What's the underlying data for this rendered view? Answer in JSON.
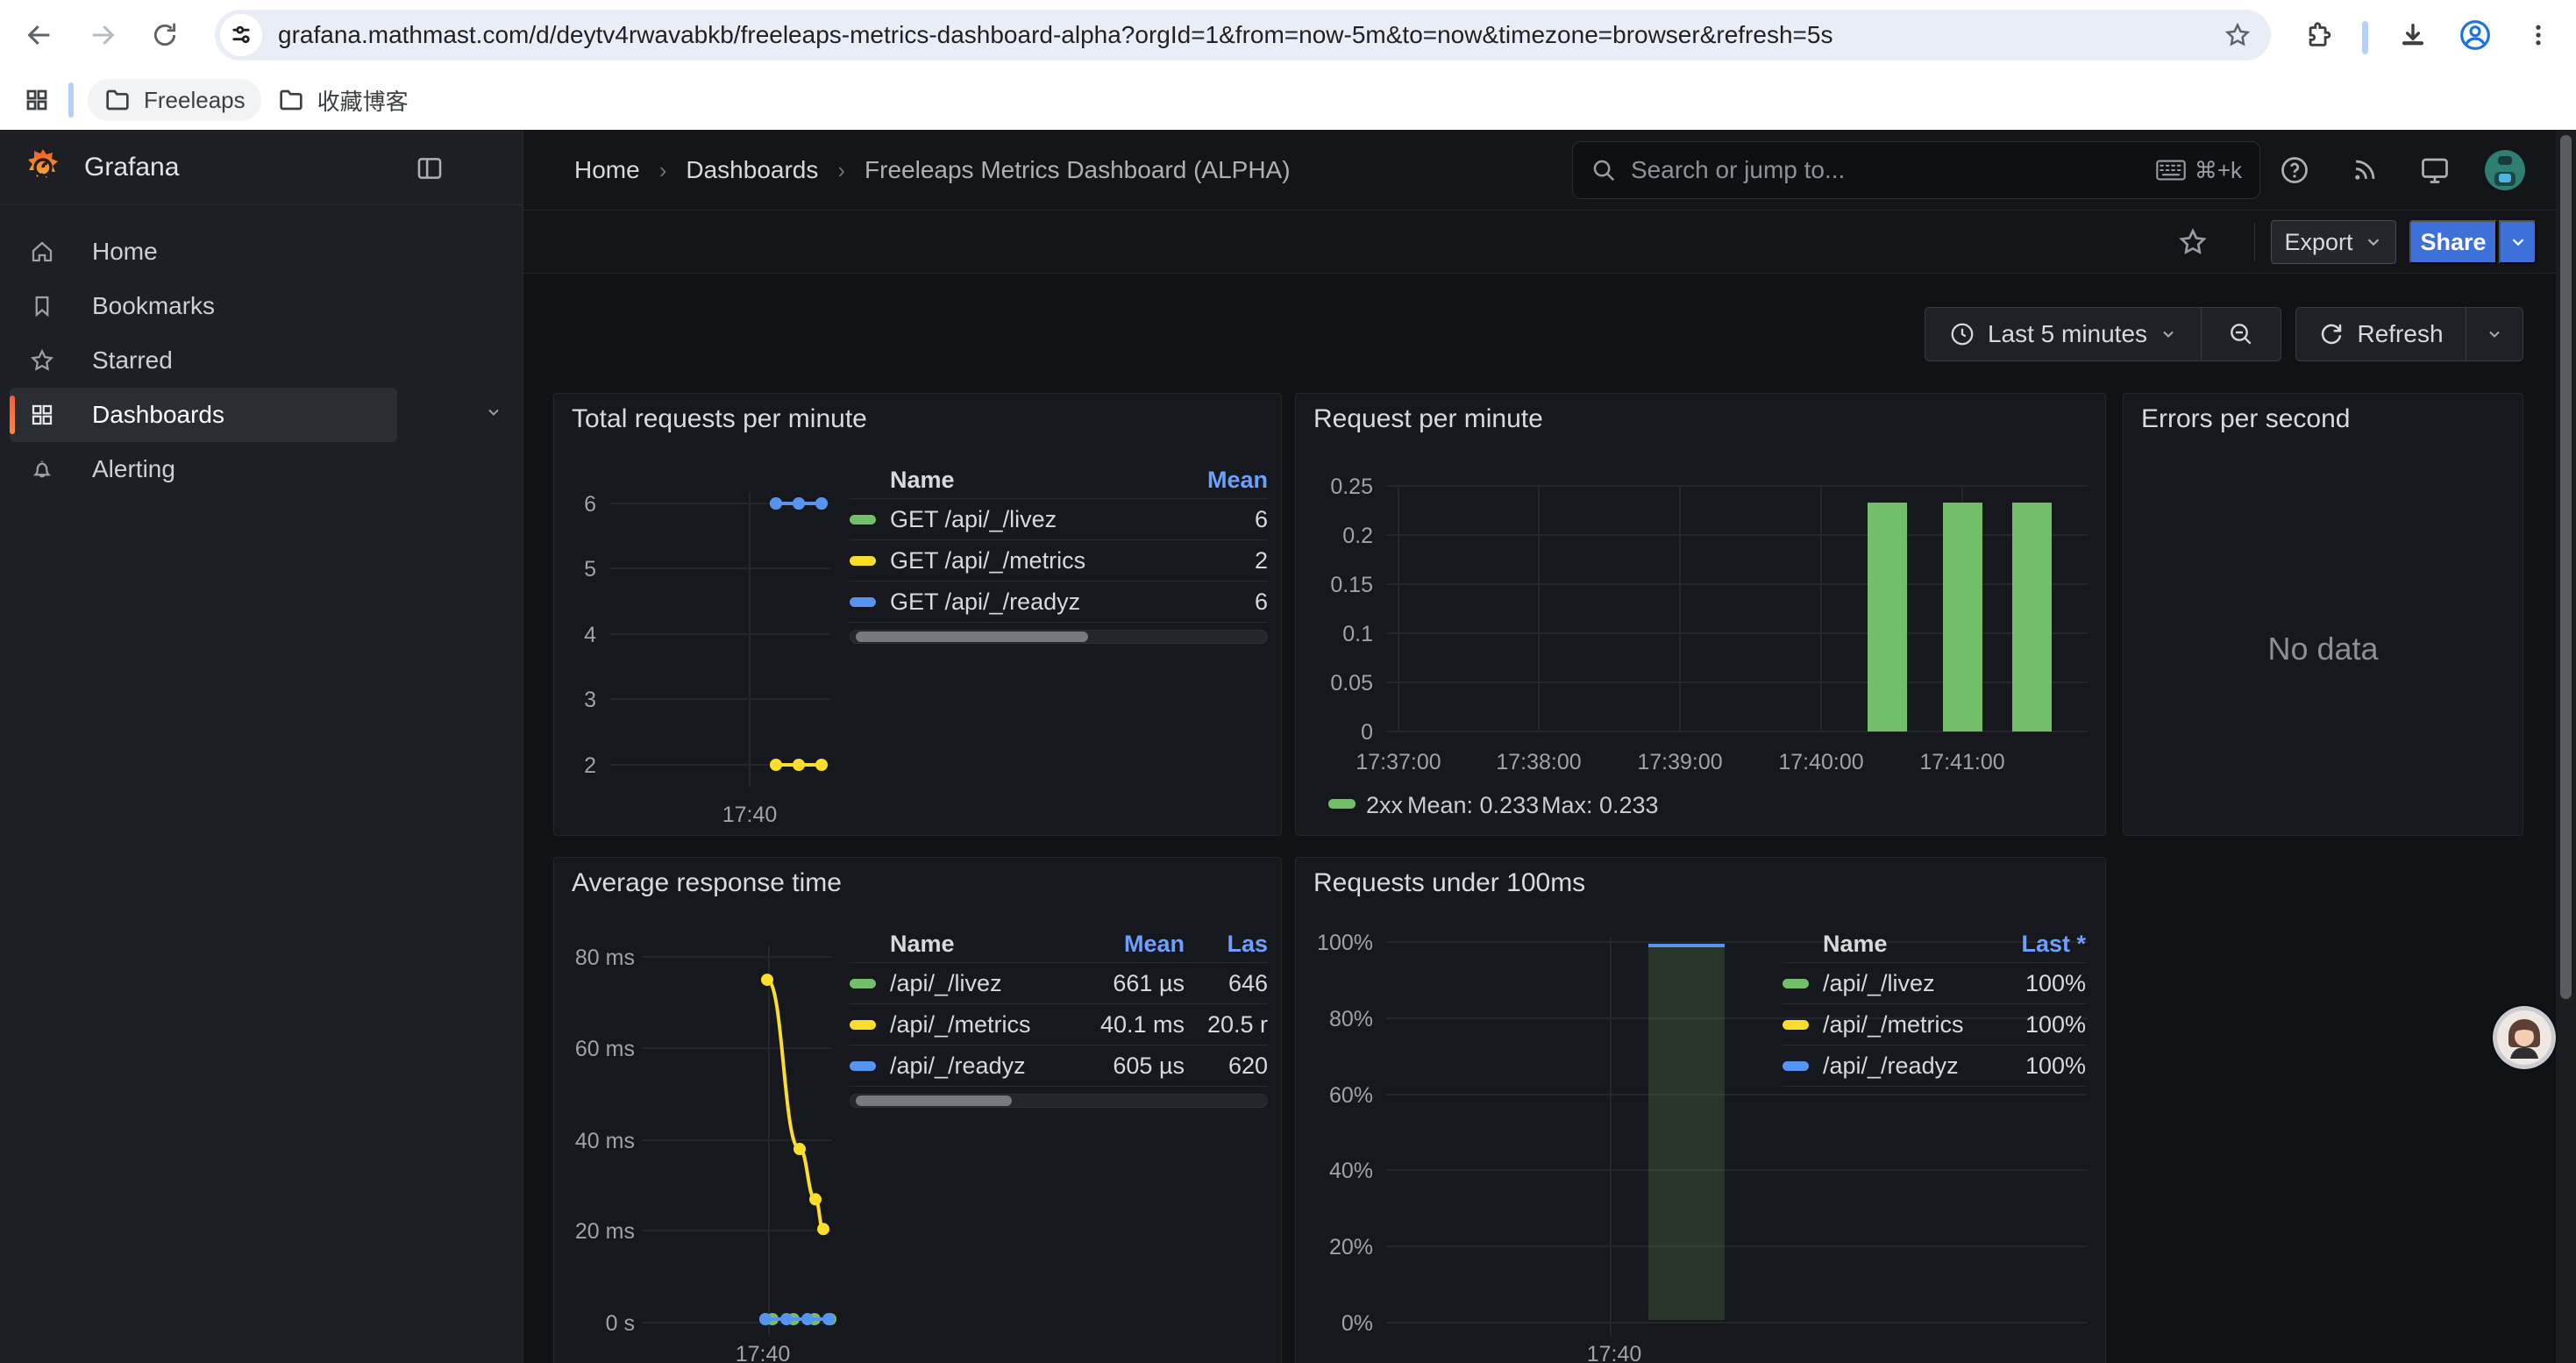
{
  "browser": {
    "url": "grafana.mathmast.com/d/deytv4rwavabkb/freeleaps-metrics-dashboard-alpha?orgId=1&from=now-5m&to=now&timezone=browser&refresh=5s",
    "bookmarks": [
      {
        "label": "Freeleaps"
      },
      {
        "label": "收藏博客"
      }
    ],
    "icons": [
      "back",
      "forward",
      "reload",
      "tune",
      "bookmark-star",
      "extensions",
      "download",
      "profile",
      "menu"
    ]
  },
  "sidebar": {
    "brand": "Grafana",
    "items": [
      {
        "label": "Home",
        "icon": "home-icon",
        "expandable": false,
        "active": false
      },
      {
        "label": "Bookmarks",
        "icon": "bookmark-icon",
        "expandable": true,
        "active": false
      },
      {
        "label": "Starred",
        "icon": "star-icon",
        "expandable": true,
        "active": false
      },
      {
        "label": "Dashboards",
        "icon": "apps-grid-icon",
        "expandable": true,
        "active": true
      },
      {
        "label": "Alerting",
        "icon": "bell-icon",
        "expandable": true,
        "active": false
      }
    ]
  },
  "topnav": {
    "breadcrumbs": [
      "Home",
      "Dashboards",
      "Freeleaps Metrics Dashboard (ALPHA)"
    ],
    "search_placeholder": "Search or jump to...",
    "search_shortcut": "⌘+k",
    "icons": [
      "help",
      "rss",
      "monitor",
      "user-avatar"
    ]
  },
  "toolbar": {
    "export_label": "Export",
    "share_label": "Share"
  },
  "controls": {
    "time_range": "Last 5 minutes",
    "refresh_label": "Refresh"
  },
  "colors": {
    "green": "#73BF69",
    "yellow": "#FADE2A",
    "blue": "#5794F2",
    "link_blue": "#6E9FFF",
    "share_blue": "#3D71D9",
    "accent_orange": "#FF8833",
    "bar_fill_translucent": "rgba(115,191,105,0.18)"
  },
  "chart_data": [
    {
      "id": "total-requests",
      "type": "line",
      "title": "Total requests per minute",
      "ylim": [
        2,
        6
      ],
      "y_ticks": [
        "6",
        "5",
        "4",
        "3",
        "2"
      ],
      "x_ticks": [
        "17:40"
      ],
      "grid": true,
      "legend_position": "right-table",
      "series": [
        {
          "name": "GET /api/_/livez",
          "color": "#73BF69",
          "values": [
            6,
            6,
            6
          ]
        },
        {
          "name": "GET /api/_/metrics",
          "color": "#FADE2A",
          "values": [
            2,
            2,
            2
          ]
        },
        {
          "name": "GET /api/_/readyz",
          "color": "#5794F2",
          "values": [
            6,
            6,
            6
          ]
        }
      ],
      "legend": {
        "columns": [
          "Name",
          "Mean"
        ],
        "rows": [
          [
            "GET /api/_/livez",
            "6"
          ],
          [
            "GET /api/_/metrics",
            "2"
          ],
          [
            "GET /api/_/readyz",
            "6"
          ]
        ]
      }
    },
    {
      "id": "request-per-minute",
      "type": "bar",
      "title": "Request per minute",
      "ylim": [
        0,
        0.25
      ],
      "y_ticks": [
        "0.25",
        "0.2",
        "0.15",
        "0.1",
        "0.05",
        "0"
      ],
      "x_ticks": [
        "17:37:00",
        "17:38:00",
        "17:39:00",
        "17:40:00",
        "17:41:00"
      ],
      "grid": true,
      "legend_position": "bottom",
      "series": [
        {
          "name": "2xx",
          "color": "#73BF69",
          "values": [
            0.233,
            0.233,
            0.233
          ]
        }
      ],
      "legend_inline": {
        "name": "2xx",
        "mean": "Mean: 0.233",
        "max": "Max: 0.233"
      }
    },
    {
      "id": "errors-per-second",
      "type": "none",
      "title": "Errors per second",
      "no_data_text": "No data"
    },
    {
      "id": "avg-response-time",
      "type": "line",
      "title": "Average response time",
      "ylabel": "",
      "y_ticks": [
        "80 ms",
        "60 ms",
        "40 ms",
        "20 ms",
        "0 s"
      ],
      "x_ticks": [
        "17:40"
      ],
      "grid": true,
      "legend_position": "right-table",
      "series": [
        {
          "name": "/api/_/livez",
          "color": "#73BF69",
          "values_ms": [
            0.66,
            0.66,
            0.66,
            0.65
          ]
        },
        {
          "name": "/api/_/metrics",
          "color": "#FADE2A",
          "values_ms": [
            75,
            38,
            27,
            20.5
          ]
        },
        {
          "name": "/api/_/readyz",
          "color": "#5794F2",
          "values_ms": [
            0.6,
            0.6,
            0.6,
            0.62
          ]
        }
      ],
      "legend": {
        "columns": [
          "Name",
          "Mean",
          "Las"
        ],
        "rows": [
          [
            "/api/_/livez",
            "661 µs",
            "646"
          ],
          [
            "/api/_/metrics",
            "40.1 ms",
            "20.5 r"
          ],
          [
            "/api/_/readyz",
            "605 µs",
            "620"
          ]
        ]
      }
    },
    {
      "id": "requests-under-100ms",
      "type": "bar",
      "title": "Requests under 100ms",
      "ylim": [
        0,
        100
      ],
      "y_ticks": [
        "100%",
        "80%",
        "60%",
        "40%",
        "20%",
        "0%"
      ],
      "x_ticks": [
        "17:40"
      ],
      "grid": true,
      "legend_position": "right-table",
      "series": [
        {
          "name": "/api/_/livez",
          "color": "#73BF69",
          "values": [
            100
          ]
        },
        {
          "name": "/api/_/metrics",
          "color": "#FADE2A",
          "values": [
            100
          ]
        },
        {
          "name": "/api/_/readyz",
          "color": "#5794F2",
          "values": [
            100
          ]
        }
      ],
      "legend": {
        "columns": [
          "Name",
          "Last *"
        ],
        "rows": [
          [
            "/api/_/livez",
            "100%"
          ],
          [
            "/api/_/metrics",
            "100%"
          ],
          [
            "/api/_/readyz",
            "100%"
          ]
        ]
      }
    }
  ]
}
